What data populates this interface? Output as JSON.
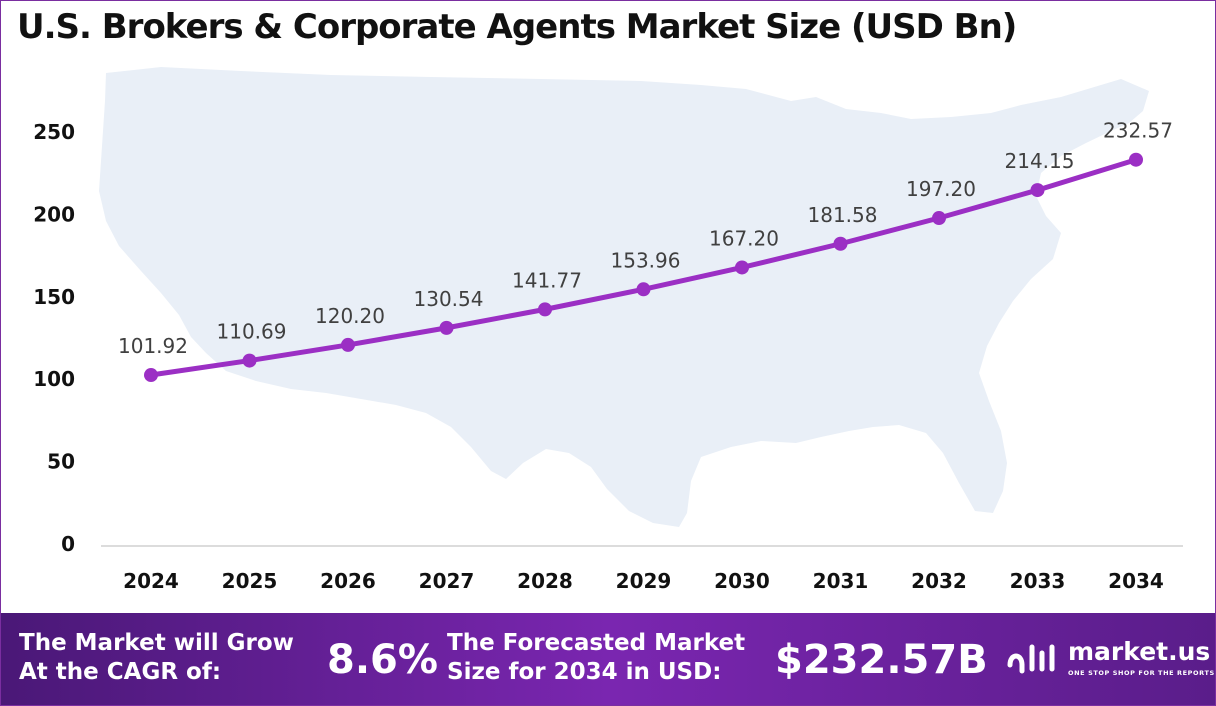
{
  "chart_data": {
    "type": "line",
    "title": "U.S. Brokers & Corporate Agents Market Size (USD Bn)",
    "xlabel": "",
    "ylabel": "",
    "categories": [
      "2024",
      "2025",
      "2026",
      "2027",
      "2028",
      "2029",
      "2030",
      "2031",
      "2032",
      "2033",
      "2034"
    ],
    "series": [
      {
        "values": [
          101.92,
          110.69,
          120.2,
          130.54,
          141.77,
          153.96,
          167.2,
          181.58,
          197.2,
          214.15,
          232.57
        ],
        "data_labels": [
          "101.92",
          "110.69",
          "120.20",
          "130.54",
          "141.77",
          "153.96",
          "167.20",
          "181.58",
          "197.20",
          "214.15",
          "232.57"
        ]
      }
    ],
    "ylim": [
      0,
      250
    ],
    "yticks": [
      0,
      50,
      100,
      150,
      200,
      250
    ],
    "grid": false,
    "legend": "none",
    "line_color": "#9b2fc4",
    "background_image": "united-states-map-silhouette"
  },
  "footer": {
    "cagr_label_line1": "The Market will Grow",
    "cagr_label_line2": "At the CAGR of:",
    "cagr_value": "8.6%",
    "forecast_label_line1": "The Forecasted Market",
    "forecast_label_line2": "Size for 2034 in USD:",
    "forecast_value": "$232.57B",
    "brand_name": "market.us",
    "brand_tagline": "ONE STOP SHOP FOR THE REPORTS",
    "brand_icon": "market-us-logo-icon"
  },
  "colors": {
    "accent": "#9b2fc4",
    "footer_start": "#4a1877",
    "footer_end": "#7a26b0",
    "map_fill": "#e9eff7"
  }
}
